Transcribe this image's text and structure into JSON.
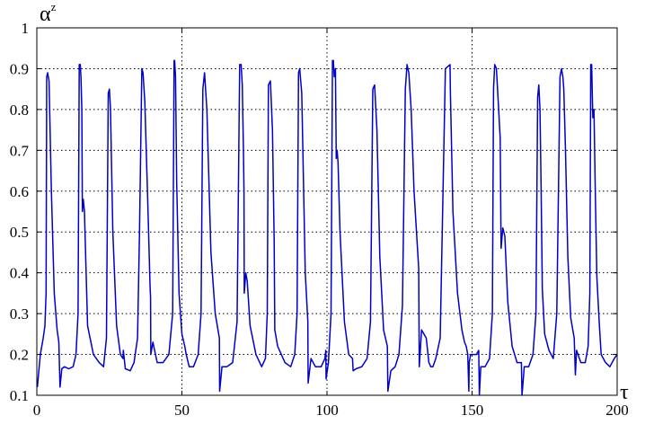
{
  "chart_data": {
    "type": "line",
    "xlabel": "τ",
    "ylabel": {
      "base": "α",
      "sup": "z"
    },
    "xlim": [
      0,
      200
    ],
    "ylim": [
      0.1,
      1
    ],
    "xticks": [
      0,
      50,
      100,
      150,
      200
    ],
    "yticks": [
      0.1,
      0.2,
      0.3,
      0.4,
      0.5,
      0.6,
      0.7,
      0.8,
      0.9,
      1
    ],
    "ytick_labels": [
      "0.1",
      "0.2",
      "0.3",
      "0.4",
      "0.5",
      "0.6",
      "0.7",
      "0.8",
      "0.9",
      "1"
    ],
    "grid": true,
    "series_color": "#0000cc",
    "series": [
      {
        "x": [
          0.2,
          1.2,
          2.2,
          2.8,
          3.2,
          3.4,
          3.7,
          4.2,
          5.0,
          6.0,
          7.0,
          7.6,
          8.0,
          8.6,
          9.5,
          11.0,
          12.5,
          13.5,
          14.2,
          14.6,
          15.0,
          15.2,
          15.5,
          15.7,
          16.0,
          16.4,
          17.5,
          19.5,
          21.5,
          23.0,
          24.0,
          24.6,
          25.0,
          25.4,
          26.2,
          27.5,
          28.8,
          29.7,
          29.8,
          30.5,
          32.2,
          33.5,
          34.7,
          35.4,
          36.2,
          36.6,
          37.2,
          38.2,
          39.0,
          39.2,
          39.3,
          40.0,
          41.5,
          43.5,
          45.5,
          46.8,
          47.3,
          47.5,
          47.8,
          48.2,
          49.0,
          50.0,
          51.0,
          51.5,
          52.5,
          54.0,
          55.6,
          56.6,
          57.2,
          57.8,
          58.6,
          60.0,
          61.5,
          62.9,
          63.0,
          63.8,
          65.5,
          67.5,
          69.0,
          69.9,
          70.4,
          70.8,
          71.2,
          71.4,
          71.5,
          72.0,
          72.5,
          73.5,
          75.5,
          77.5,
          78.8,
          79.4,
          79.8,
          80.5,
          81.2,
          81.8,
          82.0,
          83.0,
          85.5,
          87.5,
          88.9,
          89.7,
          90.2,
          90.6,
          91.3,
          92.5,
          93.4,
          93.5,
          94.5,
          96.0,
          98.0,
          99.3,
          99.6,
          99.7,
          100.5,
          101.4,
          101.9,
          102.2,
          102.5,
          102.9,
          103.2,
          103.5,
          103.8,
          104.5,
          106.0,
          107.5,
          108.8,
          109.0,
          110.0,
          112.0,
          113.8,
          115.0,
          115.8,
          116.4,
          117.2,
          118.2,
          119.5,
          120.8,
          121.0,
          122.0,
          123.5,
          124.8,
          126.0,
          127.0,
          127.6,
          128.2,
          129.0,
          130.0,
          131.6,
          131.8,
          132.6,
          134.2,
          135.1,
          135.8,
          136.5,
          137.5,
          139.0,
          140.8,
          142.4,
          142.5,
          143.4,
          145.0,
          146.5,
          147.4,
          148.0,
          148.5,
          148.9,
          149.0,
          149.5,
          150.3,
          151.5,
          152.3,
          152.5,
          153.0,
          154.5,
          156.0,
          157.0,
          157.4,
          157.8,
          158.4,
          159.0,
          159.7,
          160.0,
          160.6,
          161.3,
          162.3,
          163.8,
          165.5,
          167.0,
          167.2,
          168.0,
          169.5,
          171.0,
          172.0,
          172.6,
          173.0,
          173.4,
          173.8,
          174.2,
          175.0,
          176.5,
          178.0,
          179.2,
          180.3,
          180.8,
          181.3,
          181.6,
          182.2,
          183.0,
          184.0,
          185.2,
          185.6,
          186.0,
          187.5,
          189.0,
          190.0,
          190.6,
          190.9,
          191.2,
          191.6,
          192.0,
          192.4,
          193.0,
          193.8,
          194.5,
          196.0,
          197.5,
          199.0,
          200.0
        ],
        "y": [
          0.12,
          0.2,
          0.24,
          0.27,
          0.35,
          0.88,
          0.89,
          0.87,
          0.6,
          0.35,
          0.26,
          0.23,
          0.12,
          0.165,
          0.17,
          0.165,
          0.17,
          0.2,
          0.3,
          0.91,
          0.91,
          0.88,
          0.8,
          0.55,
          0.58,
          0.55,
          0.27,
          0.2,
          0.18,
          0.17,
          0.24,
          0.84,
          0.85,
          0.8,
          0.5,
          0.27,
          0.2,
          0.19,
          0.21,
          0.165,
          0.16,
          0.18,
          0.24,
          0.5,
          0.9,
          0.89,
          0.82,
          0.58,
          0.37,
          0.34,
          0.2,
          0.23,
          0.18,
          0.18,
          0.2,
          0.3,
          0.92,
          0.92,
          0.88,
          0.62,
          0.35,
          0.25,
          0.22,
          0.2,
          0.17,
          0.17,
          0.2,
          0.3,
          0.85,
          0.89,
          0.8,
          0.45,
          0.3,
          0.24,
          0.11,
          0.17,
          0.17,
          0.18,
          0.28,
          0.91,
          0.91,
          0.86,
          0.7,
          0.6,
          0.35,
          0.4,
          0.38,
          0.27,
          0.2,
          0.17,
          0.19,
          0.3,
          0.86,
          0.87,
          0.75,
          0.48,
          0.26,
          0.22,
          0.18,
          0.17,
          0.2,
          0.3,
          0.89,
          0.9,
          0.84,
          0.4,
          0.28,
          0.13,
          0.19,
          0.17,
          0.17,
          0.19,
          0.21,
          0.14,
          0.18,
          0.3,
          0.92,
          0.92,
          0.88,
          0.9,
          0.68,
          0.7,
          0.67,
          0.5,
          0.28,
          0.2,
          0.19,
          0.16,
          0.165,
          0.17,
          0.19,
          0.28,
          0.85,
          0.86,
          0.75,
          0.44,
          0.26,
          0.22,
          0.11,
          0.16,
          0.17,
          0.2,
          0.32,
          0.85,
          0.91,
          0.89,
          0.8,
          0.6,
          0.41,
          0.17,
          0.26,
          0.24,
          0.18,
          0.17,
          0.17,
          0.19,
          0.24,
          0.9,
          0.91,
          0.85,
          0.55,
          0.35,
          0.26,
          0.23,
          0.22,
          0.2,
          0.11,
          0.18,
          0.2,
          0.2,
          0.2,
          0.21,
          0.1,
          0.17,
          0.17,
          0.19,
          0.3,
          0.85,
          0.91,
          0.9,
          0.82,
          0.73,
          0.46,
          0.51,
          0.49,
          0.33,
          0.22,
          0.18,
          0.18,
          0.1,
          0.17,
          0.17,
          0.2,
          0.3,
          0.83,
          0.86,
          0.8,
          0.6,
          0.36,
          0.25,
          0.21,
          0.19,
          0.3,
          0.88,
          0.9,
          0.88,
          0.85,
          0.7,
          0.44,
          0.29,
          0.24,
          0.15,
          0.21,
          0.18,
          0.18,
          0.22,
          0.35,
          0.91,
          0.91,
          0.78,
          0.8,
          0.62,
          0.39,
          0.28,
          0.2,
          0.18,
          0.17,
          0.19,
          0.2
        ]
      }
    ]
  }
}
